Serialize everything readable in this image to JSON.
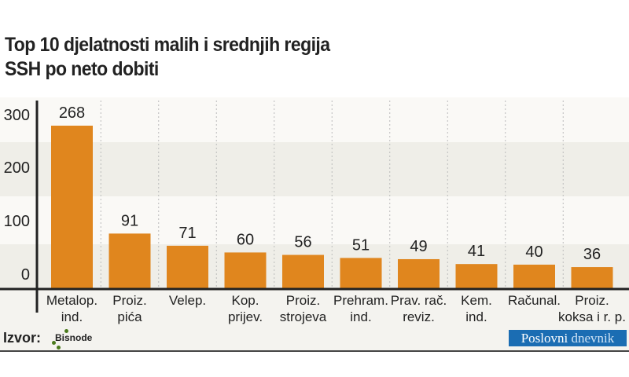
{
  "title_line1": "Top 10 djelatnosti malih i srednjih regija",
  "title_line2": "SSH po neto dobiti",
  "source_label": "Izvor:",
  "source_logo": "Bisnode",
  "publisher_logo": {
    "part1": "Poslovni",
    "part2": "dnevnik"
  },
  "colors": {
    "bar": "#e0861e",
    "band_light": "#faf9f6",
    "band_dark": "#efeee8",
    "publisher": "#1b6db3"
  },
  "chart_data": {
    "type": "bar",
    "categories": [
      [
        "Metalop.",
        "ind."
      ],
      [
        "Proiz.",
        "pića"
      ],
      [
        "Velep.",
        ""
      ],
      [
        "Kop.",
        "prijev."
      ],
      [
        "Proiz.",
        "strojeva"
      ],
      [
        "Prehram.",
        "ind."
      ],
      [
        "Prav. rač.",
        "reviz."
      ],
      [
        "Kem.",
        "ind."
      ],
      [
        "Računal.",
        ""
      ],
      [
        "Proiz.",
        "koksa i r. p."
      ]
    ],
    "values": [
      268,
      91,
      71,
      60,
      56,
      51,
      49,
      41,
      40,
      36
    ],
    "yticks": [
      0,
      100,
      200,
      300
    ],
    "ylim": [
      0,
      300
    ],
    "grid": "alternating bands",
    "xlabel": "",
    "ylabel": ""
  }
}
